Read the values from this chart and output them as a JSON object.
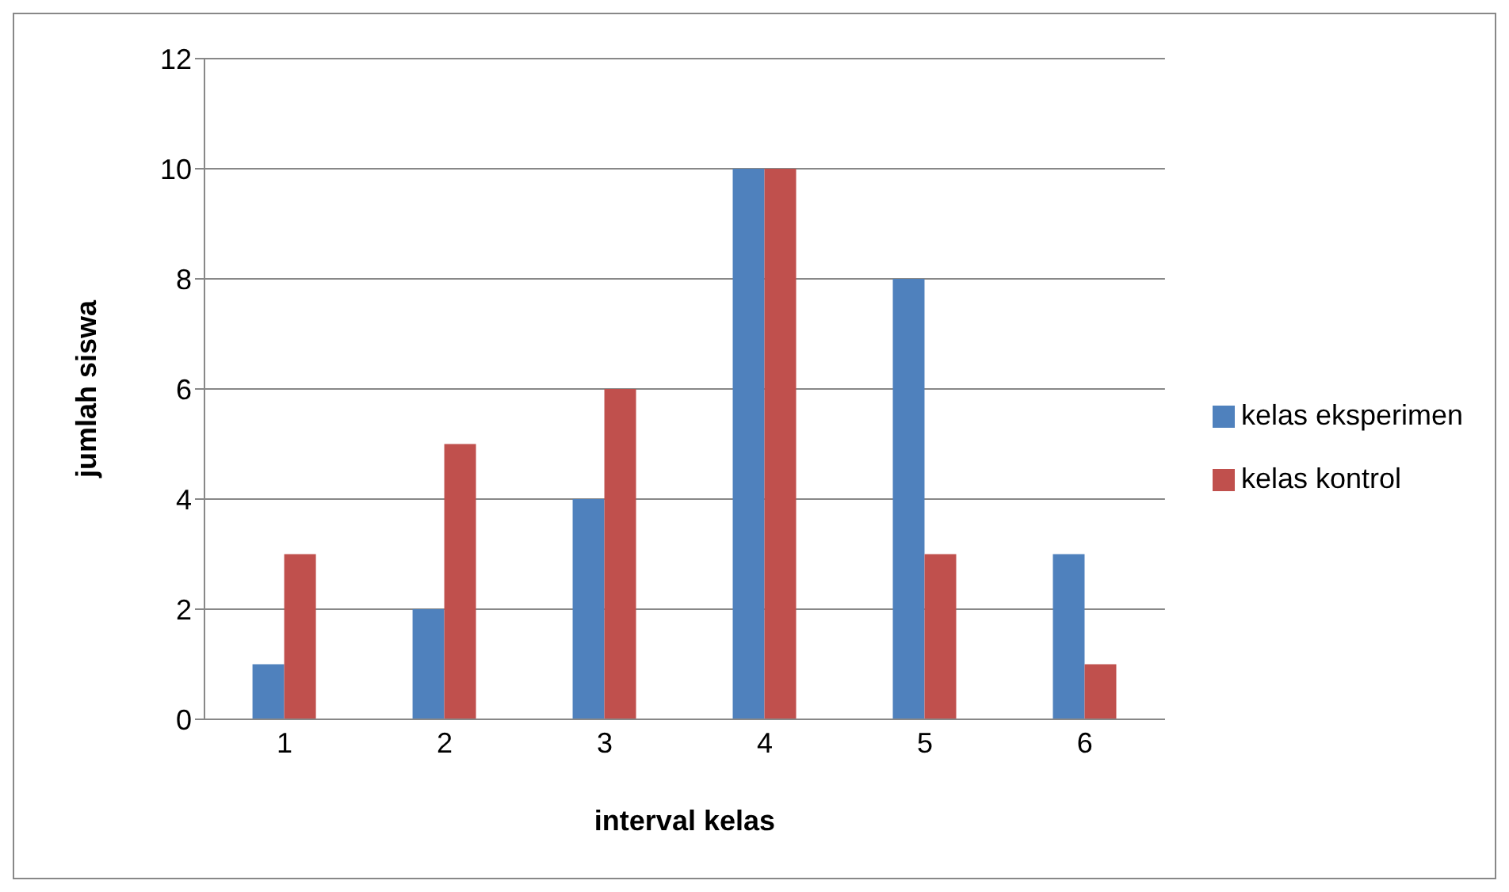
{
  "chart_data": {
    "type": "bar",
    "xlabel": "interval kelas",
    "ylabel": "jumlah siswa",
    "categories": [
      "1",
      "2",
      "3",
      "4",
      "5",
      "6"
    ],
    "series": [
      {
        "name": "kelas eksperimen",
        "color": "#4f81bd",
        "values": [
          1,
          2,
          4,
          10,
          8,
          3
        ]
      },
      {
        "name": "kelas kontrol",
        "color": "#c0504d",
        "values": [
          3,
          5,
          6,
          10,
          3,
          1
        ]
      }
    ],
    "ylim": [
      0,
      12
    ],
    "yticks": [
      0,
      2,
      4,
      6,
      8,
      10,
      12
    ],
    "grid": "y",
    "legend": "right"
  }
}
